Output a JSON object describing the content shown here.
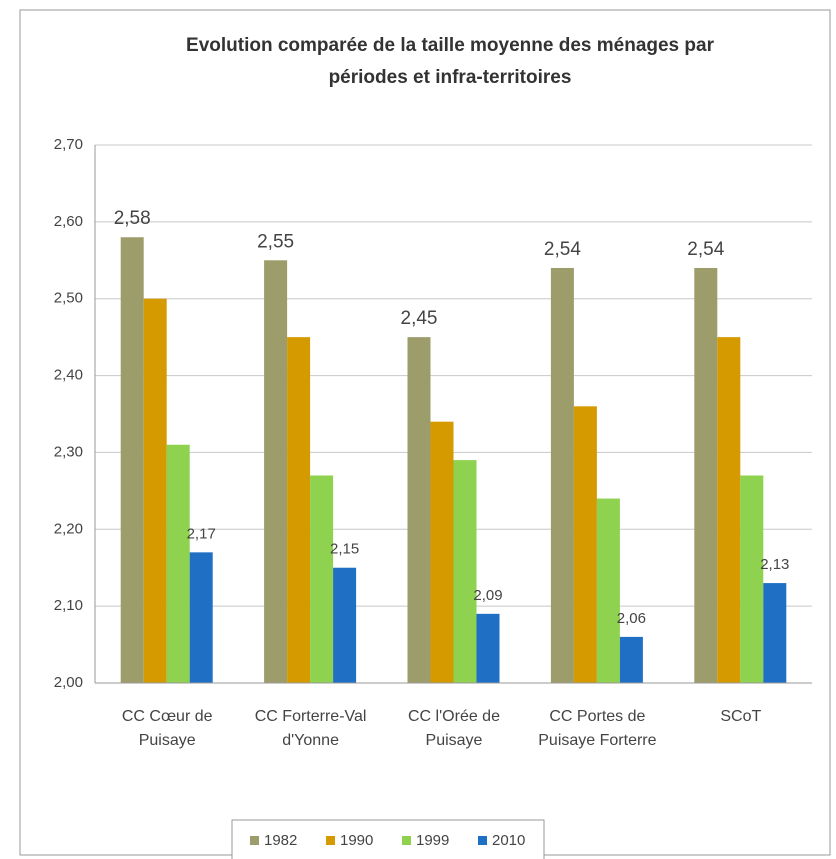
{
  "chart_data": {
    "type": "bar",
    "title": "Evolution comparée de la taille moyenne des ménages par périodes et infra-territoires",
    "categories": [
      "CC Cœur de Puisaye",
      "CC Forterre-Val d'Yonne",
      "CC l'Orée de Puisaye",
      "CC Portes de Puisaye Forterre",
      "SCoT"
    ],
    "series": [
      {
        "name": "1982",
        "color": "#9d9d6c",
        "values": [
          2.58,
          2.55,
          2.45,
          2.54,
          2.54
        ],
        "value_labels": [
          "2,58",
          "2,55",
          "2,45",
          "2,54",
          "2,54"
        ]
      },
      {
        "name": "1990",
        "color": "#d49a00",
        "values": [
          2.5,
          2.45,
          2.34,
          2.36,
          2.45
        ]
      },
      {
        "name": "1999",
        "color": "#8ed24f",
        "values": [
          2.31,
          2.27,
          2.29,
          2.24,
          2.27
        ]
      },
      {
        "name": "2010",
        "color": "#1f6fc4",
        "values": [
          2.17,
          2.15,
          2.09,
          2.06,
          2.13
        ],
        "value_labels": [
          "2,17",
          "2,15",
          "2,09",
          "2,06",
          "2,13"
        ]
      }
    ],
    "ylim": [
      2.0,
      2.7
    ],
    "yticks": [
      {
        "value": 2.0,
        "label": "2,00"
      },
      {
        "value": 2.1,
        "label": "2,10"
      },
      {
        "value": 2.2,
        "label": "2,20"
      },
      {
        "value": 2.3,
        "label": "2,30"
      },
      {
        "value": 2.4,
        "label": "2,40"
      },
      {
        "value": 2.5,
        "label": "2,50"
      },
      {
        "value": 2.6,
        "label": "2,60"
      },
      {
        "value": 2.7,
        "label": "2,70"
      }
    ],
    "grid": true,
    "legend": "bottom"
  }
}
